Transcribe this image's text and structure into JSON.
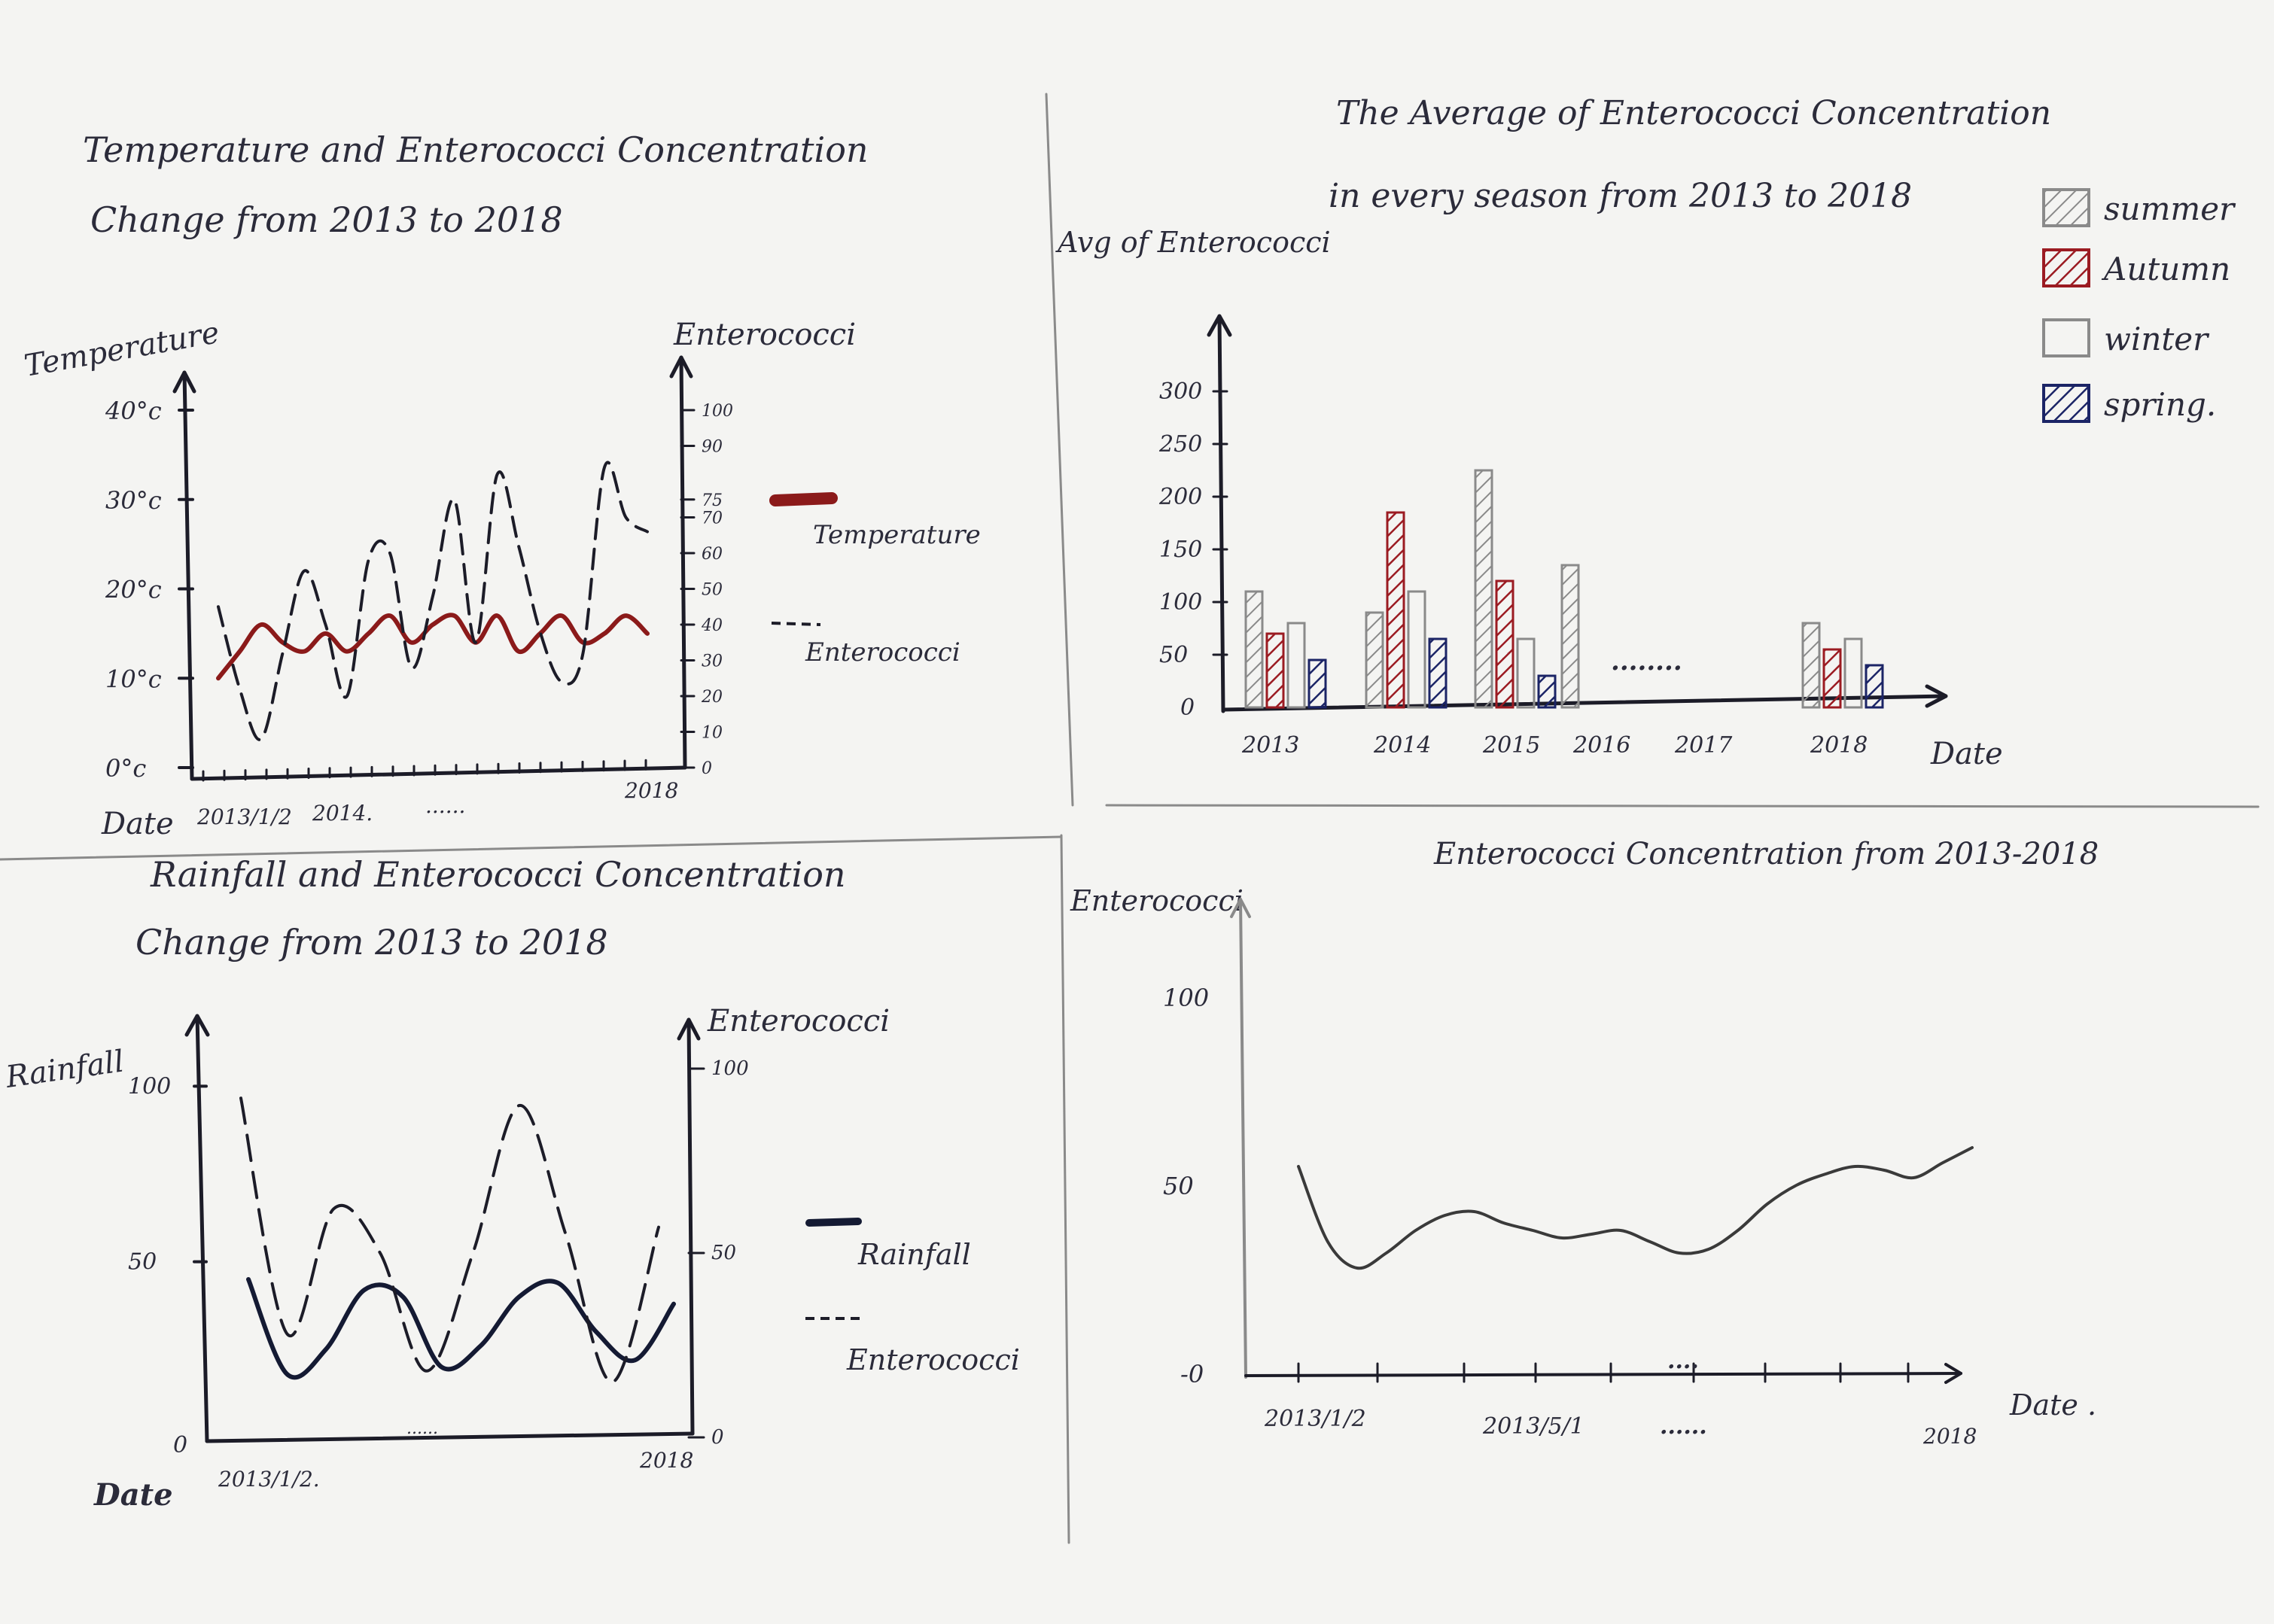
{
  "chart_data": [
    {
      "id": "temp",
      "type": "line",
      "title_line1": "Temperature and Enterococci Concentration",
      "title_line2": "Change from 2013 to 2018",
      "ylabel_left": "Temperature",
      "ylabel_right": "Enterococci",
      "xlabel": "Date",
      "x_ticklabels": [
        "2013/1/2",
        "2014.",
        "......",
        "2018"
      ],
      "y_left_ticks": [
        "0°c",
        "10°c",
        "20°c",
        "30°c",
        "40°c"
      ],
      "y_left_range": [
        0,
        40
      ],
      "y_right_ticks": [
        "0",
        "10",
        "20",
        "30",
        "40",
        "50",
        "60",
        "70",
        "75",
        "90",
        "100"
      ],
      "y_right_range": [
        0,
        100
      ],
      "colors": {
        "temperature": "#8b1a1a",
        "enterococci": "#1c1c28"
      },
      "legend": [
        {
          "label": "Temperature",
          "style": "solid",
          "color": "#8b1a1a"
        },
        {
          "label": "Enterococci",
          "style": "dashed",
          "color": "#1c1c28"
        }
      ],
      "series": [
        {
          "name": "Temperature",
          "axis": "left",
          "values": [
            10,
            13,
            16,
            14,
            13,
            15,
            13,
            15,
            17,
            14,
            16,
            17,
            14,
            17,
            13,
            15,
            17,
            14,
            15,
            17,
            15
          ]
        },
        {
          "name": "Enterococci",
          "axis": "right",
          "values": [
            45,
            22,
            8,
            32,
            55,
            40,
            20,
            58,
            60,
            28,
            48,
            75,
            35,
            82,
            62,
            38,
            24,
            32,
            84,
            70,
            66
          ]
        }
      ]
    },
    {
      "id": "rain",
      "type": "line",
      "title_line1": "Rainfall and Enterococci Concentration",
      "title_line2": "Change from 2013 to 2018",
      "ylabel_left": "Rainfall",
      "ylabel_right": "Enterococci",
      "xlabel": "Date",
      "x_ticklabels": [
        "2013/1/2.",
        "......",
        "2018"
      ],
      "y_left_ticks": [
        "0",
        "50",
        "100"
      ],
      "y_left_range": [
        0,
        120
      ],
      "y_right_ticks": [
        "0",
        "50",
        "100"
      ],
      "y_right_range": [
        0,
        100
      ],
      "colors": {
        "rainfall": "#141a33",
        "enterococci": "#1c1c28"
      },
      "legend": [
        {
          "label": "Rainfall",
          "style": "solid",
          "color": "#141a33"
        },
        {
          "label": "Enterococci",
          "style": "dashed",
          "color": "#1c1c28"
        }
      ],
      "series": [
        {
          "name": "Rainfall",
          "axis": "left",
          "values": [
            45,
            18,
            25,
            42,
            40,
            20,
            26,
            40,
            44,
            30,
            22,
            38
          ]
        },
        {
          "name": "Enterococci",
          "axis": "right",
          "values": [
            92,
            28,
            62,
            50,
            18,
            50,
            90,
            55,
            15,
            57
          ]
        }
      ]
    },
    {
      "id": "season",
      "type": "bar",
      "title_line1": "The Average of Enterococci Concentration",
      "title_line2": "in every season from 2013 to 2018",
      "ylabel": "Avg of Enterococci",
      "xlabel": "Date",
      "categories": [
        "2013",
        "2014",
        "2015",
        "2016",
        "2017",
        "2018"
      ],
      "gap_text": "........",
      "y_ticks": [
        "0",
        "50",
        "100",
        "150",
        "200",
        "250",
        "300"
      ],
      "ylim": [
        0,
        300
      ],
      "legend": [
        {
          "label": "summer",
          "color": "#8a8a8a",
          "hatch": true
        },
        {
          "label": "Autumn",
          "color": "#9b1b22",
          "hatch": true
        },
        {
          "label": "winter",
          "color": "#8a8a8a",
          "hatch": false
        },
        {
          "label": "spring.",
          "color": "#1b2466",
          "hatch": true
        }
      ],
      "series": [
        {
          "name": "summer",
          "values": [
            110,
            90,
            225,
            135,
            null,
            80
          ]
        },
        {
          "name": "Autumn",
          "values": [
            70,
            185,
            120,
            0,
            null,
            55
          ]
        },
        {
          "name": "winter",
          "values": [
            80,
            110,
            65,
            0,
            null,
            65
          ]
        },
        {
          "name": "spring.",
          "values": [
            45,
            65,
            30,
            0,
            null,
            40
          ]
        }
      ]
    },
    {
      "id": "entero",
      "type": "line",
      "title": "Enterococci Concentration from 2013-2018",
      "ylabel": "Enterococci",
      "xlabel": "Date .",
      "x_ticklabels": [
        "2013/1/2",
        "2013/5/1",
        "......",
        "2018"
      ],
      "dots_above": "....",
      "y_ticks": [
        "0",
        "50",
        "100"
      ],
      "ylim": [
        0,
        100
      ],
      "series": [
        {
          "name": "Enterococci",
          "values": [
            55,
            35,
            28,
            32,
            38,
            42,
            43,
            40,
            38,
            36,
            37,
            38,
            35,
            32,
            33,
            38,
            45,
            50,
            53,
            55,
            54,
            52,
            56,
            60
          ]
        }
      ]
    }
  ]
}
